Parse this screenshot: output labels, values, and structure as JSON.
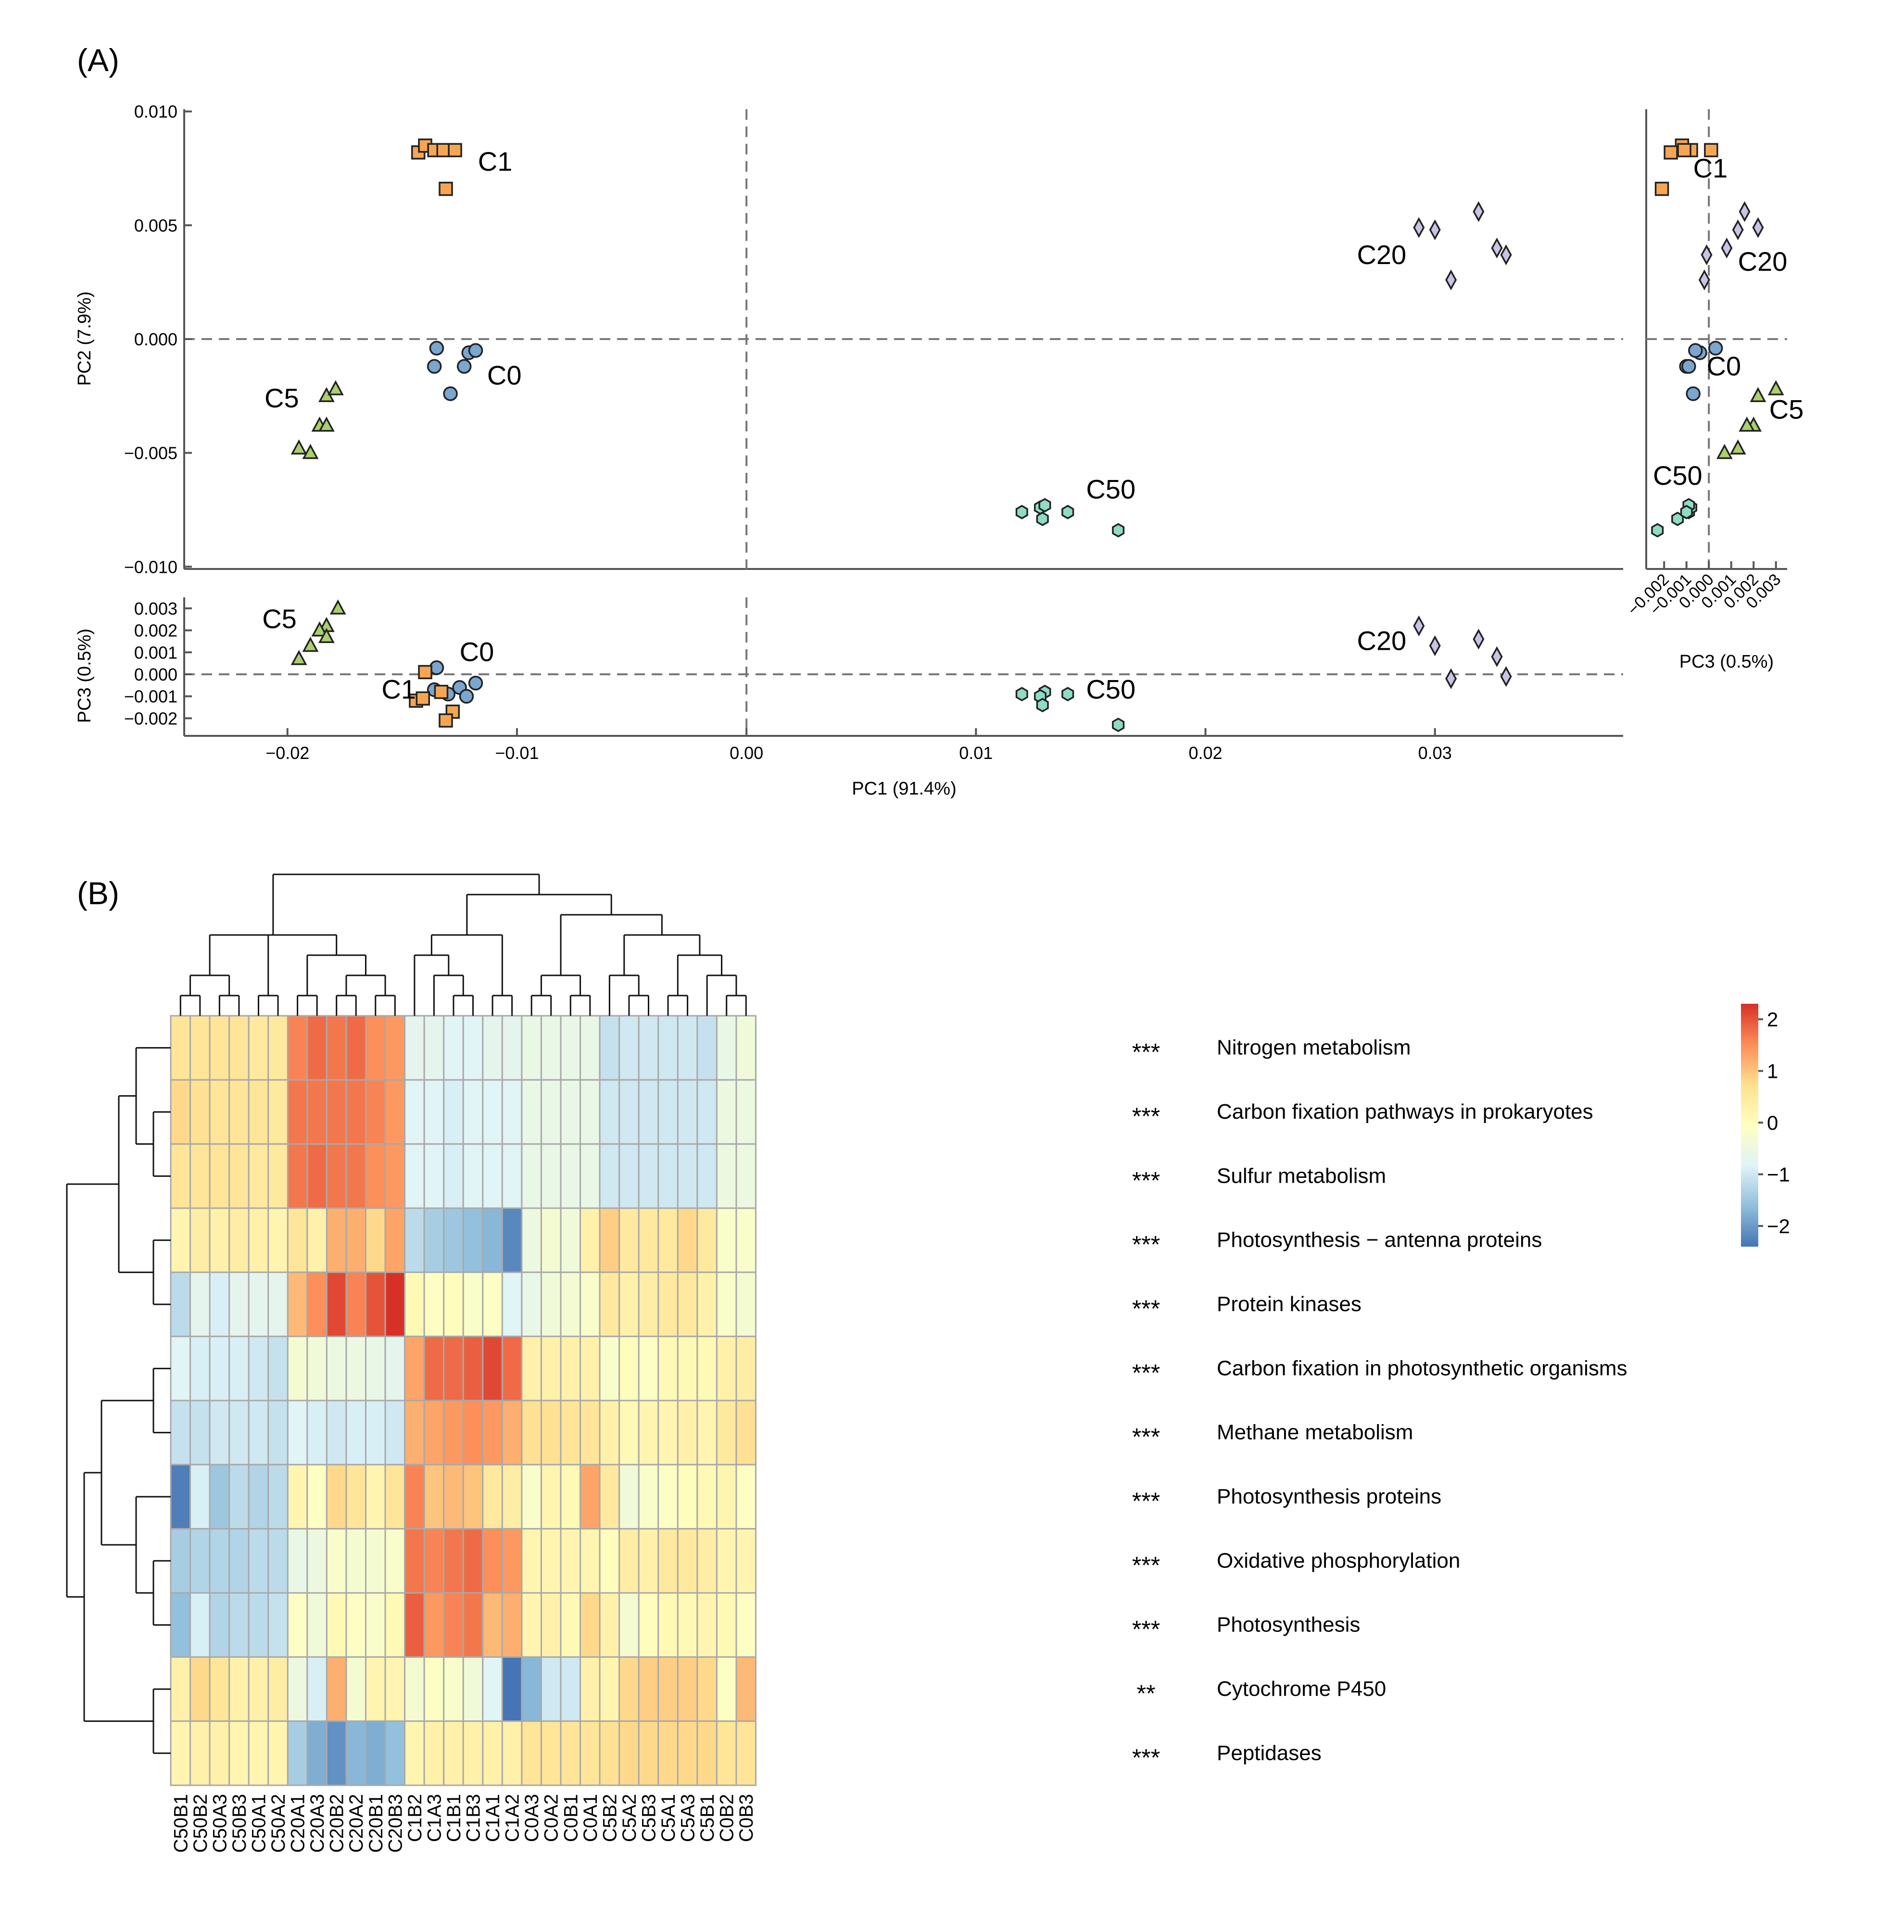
{
  "panel_a_label": "(A)",
  "panel_b_label": "(B)",
  "chart_data": [
    {
      "type": "scatter",
      "panel": "A",
      "subplot": "PC1 vs PC2",
      "ylabel": "PC2 (7.9%)",
      "xlim": [
        -0.0245,
        0.0382
      ],
      "ylim": [
        -0.0101,
        0.0101
      ],
      "yticks": [
        "0.010",
        "0.005",
        "0.000",
        "−0.005",
        "−0.010"
      ],
      "grid": false,
      "reference_lines": [
        "x = 0",
        "y = 0"
      ],
      "series": [
        {
          "name": "C0",
          "marker": "circle",
          "color": "#7aa6d0",
          "x": [
            -0.0135,
            -0.0121,
            -0.0118,
            -0.0136,
            -0.0123,
            -0.0129
          ],
          "y": [
            -0.0004,
            -0.0006,
            -0.0005,
            -0.0012,
            -0.0012,
            -0.0024
          ]
        },
        {
          "name": "C1",
          "marker": "square",
          "color": "#f6a653",
          "x": [
            -0.0143,
            -0.014,
            -0.0136,
            -0.0132,
            -0.0127,
            -0.0131
          ],
          "y": [
            0.0082,
            0.0085,
            0.0083,
            0.0083,
            0.0083,
            0.0066
          ]
        },
        {
          "name": "C5",
          "marker": "triangle",
          "color": "#a9d06a",
          "x": [
            -0.0183,
            -0.0179,
            -0.0186,
            -0.0183,
            -0.0195,
            -0.019
          ],
          "y": [
            -0.0025,
            -0.0022,
            -0.0038,
            -0.0038,
            -0.0048,
            -0.005
          ]
        },
        {
          "name": "C20",
          "marker": "diamond",
          "color": "#c8c4e6",
          "x": [
            0.0293,
            0.03,
            0.0319,
            0.0327,
            0.0331,
            0.0307
          ],
          "y": [
            0.0049,
            0.0048,
            0.0056,
            0.004,
            0.0037,
            0.0026
          ]
        },
        {
          "name": "C50",
          "marker": "hexagon",
          "color": "#8fdcc6",
          "x": [
            0.012,
            0.0128,
            0.013,
            0.0129,
            0.014,
            0.0162
          ],
          "y": [
            -0.0076,
            -0.0074,
            -0.0073,
            -0.0079,
            -0.0076,
            -0.0084
          ]
        }
      ],
      "annotations": [
        {
          "text": "C1",
          "x": -0.0117,
          "y": 0.0074
        },
        {
          "text": "C0",
          "x": -0.0113,
          "y": -0.002
        },
        {
          "text": "C5",
          "x": -0.021,
          "y": -0.003
        },
        {
          "text": "C20",
          "x": 0.0266,
          "y": 0.0033
        },
        {
          "text": "C50",
          "x": 0.0148,
          "y": -0.007
        }
      ]
    },
    {
      "type": "scatter",
      "panel": "A",
      "subplot": "PC1 vs PC3",
      "xlabel": "PC1 (91.4%)",
      "ylabel": "PC3 (0.5%)",
      "xlim": [
        -0.0245,
        0.0382
      ],
      "ylim": [
        -0.0028,
        0.0035
      ],
      "xticks": [
        "−0.02",
        "−0.01",
        "0.00",
        "0.01",
        "0.02",
        "0.03"
      ],
      "yticks": [
        "0.003",
        "0.002",
        "0.001",
        "0.000",
        "−0.001",
        "−0.002"
      ],
      "grid": false,
      "reference_lines": [
        "x = 0",
        "y = 0"
      ],
      "series": [
        {
          "name": "C0",
          "marker": "circle",
          "x": [
            -0.0135,
            -0.0118,
            -0.0125,
            -0.0122,
            -0.013,
            -0.0136
          ],
          "y": [
            0.0003,
            -0.0004,
            -0.0006,
            -0.001,
            -0.0009,
            -0.0007
          ]
        },
        {
          "name": "C1",
          "marker": "square",
          "x": [
            -0.014,
            -0.0133,
            -0.0144,
            -0.0141,
            -0.0128,
            -0.0131
          ],
          "y": [
            0.0001,
            -0.0008,
            -0.0012,
            -0.0011,
            -0.0017,
            -0.0021
          ]
        },
        {
          "name": "C5",
          "marker": "triangle",
          "x": [
            -0.0178,
            -0.0183,
            -0.0186,
            -0.0183,
            -0.019,
            -0.0195
          ],
          "y": [
            0.003,
            0.0022,
            0.002,
            0.0017,
            0.0013,
            0.0007
          ]
        },
        {
          "name": "C20",
          "marker": "diamond",
          "x": [
            0.0293,
            0.03,
            0.0319,
            0.0327,
            0.0307,
            0.0331
          ],
          "y": [
            0.0022,
            0.0013,
            0.0016,
            0.0008,
            -0.0002,
            -0.0001
          ]
        },
        {
          "name": "C50",
          "marker": "hexagon",
          "x": [
            0.012,
            0.013,
            0.014,
            0.0128,
            0.0129,
            0.0162
          ],
          "y": [
            -0.0009,
            -0.0008,
            -0.0009,
            -0.001,
            -0.0014,
            -0.0023
          ]
        }
      ],
      "annotations": [
        {
          "text": "C5",
          "x": -0.0211,
          "y": 0.0021
        },
        {
          "text": "C0",
          "x": -0.0125,
          "y": 0.0006
        },
        {
          "text": "C1",
          "x": -0.0159,
          "y": -0.0011
        },
        {
          "text": "C20",
          "x": 0.0266,
          "y": 0.0011
        },
        {
          "text": "C50",
          "x": 0.0148,
          "y": -0.0011
        }
      ]
    },
    {
      "type": "scatter",
      "panel": "A",
      "subplot": "PC3 vs PC2",
      "xlabel": "PC3 (0.5%)",
      "xlim": [
        -0.0028,
        0.0035
      ],
      "ylim": [
        -0.0101,
        0.0101
      ],
      "xticks": [
        "−0.002",
        "−0.001",
        "0.000",
        "0.001",
        "0.002",
        "0.003"
      ],
      "grid": false,
      "reference_lines": [
        "x = 0",
        "y = 0"
      ],
      "series": [
        {
          "name": "C0",
          "marker": "circle",
          "x": [
            0.0003,
            -0.0004,
            -0.0006,
            -0.001,
            -0.0009,
            -0.0007
          ],
          "y": [
            -0.0004,
            -0.0006,
            -0.0005,
            -0.0012,
            -0.0012,
            -0.0024
          ]
        },
        {
          "name": "C1",
          "marker": "square",
          "x": [
            0.0001,
            -0.0008,
            -0.0012,
            -0.0011,
            -0.0017,
            -0.0021
          ],
          "y": [
            0.0083,
            0.0083,
            0.0085,
            0.0083,
            0.0082,
            0.0066
          ]
        },
        {
          "name": "C5",
          "marker": "triangle",
          "x": [
            0.003,
            0.0022,
            0.002,
            0.0017,
            0.0013,
            0.0007
          ],
          "y": [
            -0.0022,
            -0.0025,
            -0.0038,
            -0.0038,
            -0.0048,
            -0.005
          ]
        },
        {
          "name": "C20",
          "marker": "diamond",
          "x": [
            0.0022,
            0.0013,
            0.0016,
            0.0008,
            -0.0002,
            -0.0001
          ],
          "y": [
            0.0049,
            0.0048,
            0.0056,
            0.004,
            0.0026,
            0.0037
          ]
        },
        {
          "name": "C50",
          "marker": "hexagon",
          "x": [
            -0.0009,
            -0.0008,
            -0.0009,
            -0.0014,
            -0.001,
            -0.0023
          ],
          "y": [
            -0.0076,
            -0.0074,
            -0.0073,
            -0.0079,
            -0.0076,
            -0.0084
          ]
        }
      ],
      "annotations": [
        {
          "text": "C1",
          "x": -0.0007,
          "y": 0.0071
        },
        {
          "text": "C20",
          "x": 0.0013,
          "y": 0.003
        },
        {
          "text": "C0",
          "x": -0.0001,
          "y": -0.0016
        },
        {
          "text": "C5",
          "x": 0.0027,
          "y": -0.0035
        },
        {
          "text": "C50",
          "x": -0.0025,
          "y": -0.0064
        }
      ]
    },
    {
      "type": "heatmap",
      "panel": "B",
      "columns": [
        "C50B1",
        "C50B2",
        "C50A3",
        "C50B3",
        "C50A1",
        "C50A2",
        "C20A1",
        "C20A3",
        "C20B2",
        "C20A2",
        "C20B1",
        "C20B3",
        "C1B2",
        "C1A3",
        "C1B1",
        "C1B3",
        "C1A1",
        "C1A2",
        "C0A3",
        "C0A2",
        "C0B1",
        "C0A1",
        "C5B2",
        "C5A2",
        "C5B3",
        "C5A1",
        "C5A3",
        "C5B1",
        "C0B2",
        "C0B3"
      ],
      "rows": [
        "Nitrogen metabolism",
        "Carbon fixation pathways in prokaryotes",
        "Sulfur metabolism",
        "Photosynthesis − antenna proteins",
        "Protein kinases",
        "Carbon fixation in photosynthetic organisms",
        "Methane metabolism",
        "Photosynthesis proteins",
        "Oxidative phosphorylation",
        "Photosynthesis",
        "Cytochrome P450",
        "Peptidases"
      ],
      "significance": [
        "***",
        "***",
        "***",
        "***",
        "***",
        "***",
        "***",
        "***",
        "***",
        "***",
        "**",
        "***"
      ],
      "colorbar": {
        "min": -2.4,
        "max": 2.3,
        "ticks": [
          "2",
          "1",
          "0",
          "−1",
          "−2"
        ],
        "colors": [
          "#4575b4",
          "#91bfdb",
          "#e0f3f8",
          "#ffffbf",
          "#fee090",
          "#fc8d59",
          "#d73027"
        ]
      },
      "values": [
        [
          0.6,
          0.6,
          0.6,
          0.6,
          0.5,
          0.5,
          1.6,
          1.8,
          1.7,
          1.8,
          1.5,
          1.4,
          -0.7,
          -0.7,
          -0.8,
          -0.8,
          -0.7,
          -0.7,
          -0.6,
          -0.6,
          -0.6,
          -0.6,
          -1.1,
          -1.0,
          -1.0,
          -1.0,
          -1.0,
          -1.1,
          -0.6,
          -0.4
        ],
        [
          0.8,
          0.7,
          0.6,
          0.6,
          0.6,
          0.5,
          1.7,
          1.7,
          1.7,
          1.7,
          1.6,
          1.4,
          -0.8,
          -0.8,
          -0.9,
          -0.8,
          -0.8,
          -0.8,
          -0.6,
          -0.6,
          -0.6,
          -0.6,
          -1.0,
          -1.0,
          -1.0,
          -1.0,
          -1.0,
          -1.0,
          -0.5,
          -0.5
        ],
        [
          0.6,
          0.6,
          0.6,
          0.6,
          0.5,
          0.5,
          1.7,
          1.8,
          1.7,
          1.7,
          1.5,
          1.4,
          -0.8,
          -0.8,
          -0.9,
          -0.8,
          -0.8,
          -0.8,
          -0.6,
          -0.6,
          -0.6,
          -0.6,
          -1.0,
          -1.0,
          -1.0,
          -1.0,
          -1.0,
          -1.0,
          -0.5,
          -0.5
        ],
        [
          0.2,
          0.4,
          0.3,
          0.4,
          0.3,
          0.2,
          0.6,
          0.3,
          1.2,
          1.2,
          0.8,
          1.3,
          -1.2,
          -1.4,
          -1.5,
          -1.6,
          -1.7,
          -2.2,
          -0.5,
          -0.3,
          -0.4,
          0.3,
          0.9,
          0.5,
          0.5,
          0.5,
          0.8,
          0.5,
          -0.2,
          -0.2
        ],
        [
          -1.2,
          -0.7,
          -0.9,
          -0.7,
          -0.7,
          -0.7,
          1.1,
          1.5,
          2.1,
          1.6,
          2.0,
          2.3,
          0.1,
          -0.1,
          0.0,
          -0.2,
          -0.1,
          -0.8,
          -0.6,
          -0.4,
          -0.3,
          -0.2,
          0.5,
          0.3,
          0.4,
          0.5,
          0.5,
          0.3,
          -0.2,
          -0.3
        ],
        [
          -0.8,
          -0.9,
          -0.9,
          -0.9,
          -1.0,
          -1.1,
          -0.3,
          -0.4,
          -0.5,
          -0.5,
          -0.6,
          -0.7,
          1.3,
          1.8,
          1.8,
          1.9,
          2.1,
          1.8,
          0.3,
          0.3,
          0.3,
          0.3,
          -0.2,
          0.0,
          -0.1,
          0.1,
          0.1,
          0.1,
          0.3,
          0.4
        ],
        [
          -1.1,
          -1.1,
          -1.0,
          -1.0,
          -1.0,
          -1.1,
          -0.8,
          -0.9,
          -1.0,
          -0.9,
          -0.9,
          -1.0,
          1.2,
          1.3,
          1.4,
          1.5,
          1.4,
          1.2,
          0.7,
          0.7,
          0.6,
          0.6,
          0.3,
          0.1,
          0.2,
          0.2,
          0.3,
          0.2,
          0.5,
          0.7
        ],
        [
          -2.3,
          -0.9,
          -1.5,
          -1.2,
          -1.3,
          -1.2,
          0.2,
          -0.1,
          0.8,
          0.6,
          0.2,
          0.6,
          1.6,
          1.0,
          1.1,
          1.0,
          0.5,
          0.4,
          -0.2,
          0.2,
          0.1,
          1.3,
          0.5,
          -0.4,
          -0.2,
          -0.1,
          0.0,
          0.1,
          0.2,
          -0.1
        ],
        [
          -1.4,
          -1.3,
          -1.3,
          -1.3,
          -1.2,
          -1.2,
          -0.6,
          -0.5,
          -0.2,
          -0.3,
          -0.3,
          -0.2,
          1.7,
          1.6,
          1.7,
          1.8,
          1.5,
          1.4,
          0.2,
          0.2,
          0.2,
          0.2,
          0.0,
          0.4,
          0.3,
          0.5,
          0.5,
          0.4,
          0.2,
          0.2
        ],
        [
          -1.6,
          -0.9,
          -1.3,
          -1.2,
          -1.2,
          -1.1,
          -0.1,
          -0.4,
          0.1,
          -0.1,
          -0.2,
          0.1,
          1.9,
          1.4,
          1.6,
          1.7,
          1.1,
          1.2,
          0.2,
          0.3,
          0.1,
          0.8,
          0.3,
          -0.3,
          0.0,
          0.1,
          0.1,
          0.2,
          0.1,
          -0.1
        ],
        [
          0.3,
          0.8,
          0.6,
          0.3,
          0.3,
          0.4,
          -0.5,
          -0.9,
          1.2,
          -0.3,
          0.2,
          0.2,
          -0.3,
          -0.1,
          -0.2,
          -0.4,
          -0.8,
          -2.4,
          -1.7,
          -1.0,
          -1.0,
          0.3,
          0.2,
          0.8,
          0.9,
          0.9,
          0.9,
          0.8,
          -0.1,
          1.1
        ],
        [
          0.2,
          0.3,
          0.3,
          0.2,
          0.2,
          0.2,
          -1.4,
          -1.8,
          -2.1,
          -1.7,
          -1.8,
          -1.6,
          0.2,
          0.3,
          0.3,
          0.3,
          0.3,
          0.3,
          0.6,
          0.6,
          0.6,
          0.6,
          0.7,
          0.8,
          0.8,
          0.8,
          0.8,
          0.8,
          0.6,
          0.6
        ]
      ]
    }
  ]
}
